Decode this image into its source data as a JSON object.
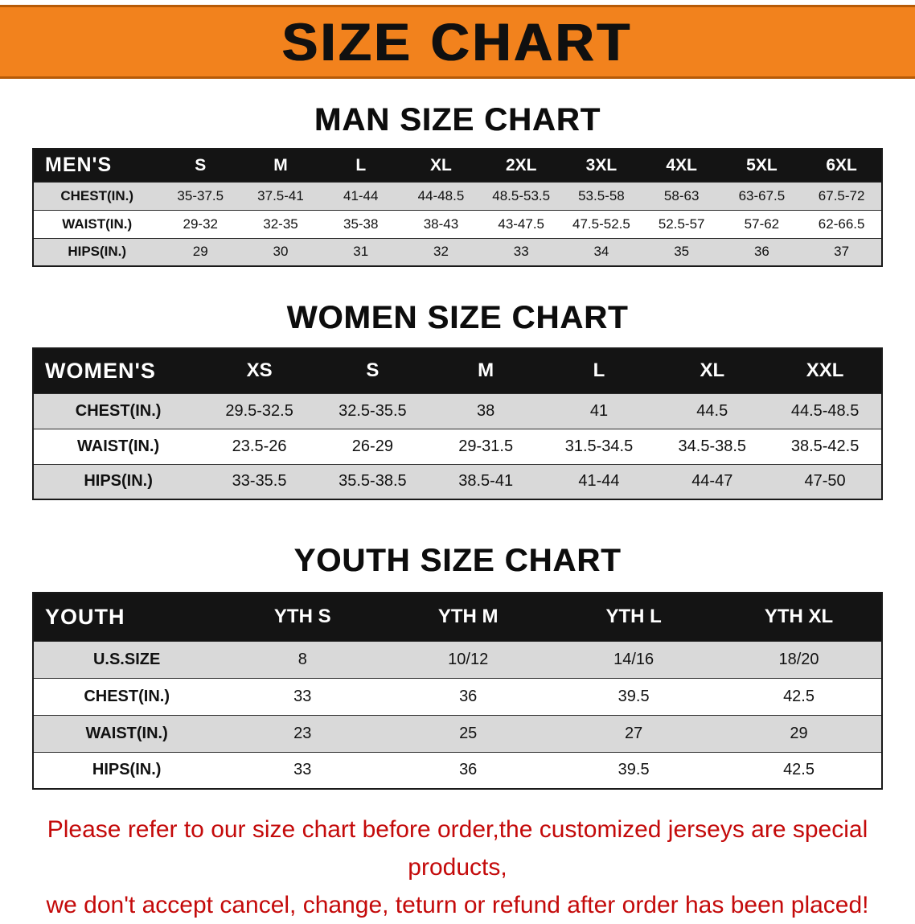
{
  "banner": {
    "title": "SIZE CHART"
  },
  "sections": [
    {
      "id": "men",
      "title": "MAN SIZE CHART",
      "header_label": "MEN'S",
      "columns": [
        "S",
        "M",
        "L",
        "XL",
        "2XL",
        "3XL",
        "4XL",
        "5XL",
        "6XL"
      ],
      "rows": [
        {
          "label": "CHEST(IN.)",
          "values": [
            "35-37.5",
            "37.5-41",
            "41-44",
            "44-48.5",
            "48.5-53.5",
            "53.5-58",
            "58-63",
            "63-67.5",
            "67.5-72"
          ]
        },
        {
          "label": "WAIST(IN.)",
          "values": [
            "29-32",
            "32-35",
            "35-38",
            "38-43",
            "43-47.5",
            "47.5-52.5",
            "52.5-57",
            "57-62",
            "62-66.5"
          ]
        },
        {
          "label": "HIPS(IN.)",
          "values": [
            "29",
            "30",
            "31",
            "32",
            "33",
            "34",
            "35",
            "36",
            "37"
          ]
        }
      ]
    },
    {
      "id": "women",
      "title": "WOMEN SIZE CHART",
      "header_label": "WOMEN'S",
      "columns": [
        "XS",
        "S",
        "M",
        "L",
        "XL",
        "XXL"
      ],
      "rows": [
        {
          "label": "CHEST(IN.)",
          "values": [
            "29.5-32.5",
            "32.5-35.5",
            "38",
            "41",
            "44.5",
            "44.5-48.5"
          ]
        },
        {
          "label": "WAIST(IN.)",
          "values": [
            "23.5-26",
            "26-29",
            "29-31.5",
            "31.5-34.5",
            "34.5-38.5",
            "38.5-42.5"
          ]
        },
        {
          "label": "HIPS(IN.)",
          "values": [
            "33-35.5",
            "35.5-38.5",
            "38.5-41",
            "41-44",
            "44-47",
            "47-50"
          ]
        }
      ]
    },
    {
      "id": "youth",
      "title": "YOUTH SIZE CHART",
      "header_label": "YOUTH",
      "columns": [
        "YTH S",
        "YTH M",
        "YTH L",
        "YTH XL"
      ],
      "rows": [
        {
          "label": "U.S.SIZE",
          "values": [
            "8",
            "10/12",
            "14/16",
            "18/20"
          ]
        },
        {
          "label": "CHEST(IN.)",
          "values": [
            "33",
            "36",
            "39.5",
            "42.5"
          ]
        },
        {
          "label": "WAIST(IN.)",
          "values": [
            "23",
            "25",
            "27",
            "29"
          ]
        },
        {
          "label": "HIPS(IN.)",
          "values": [
            "33",
            "36",
            "39.5",
            "42.5"
          ]
        }
      ]
    }
  ],
  "footer": {
    "line1": "Please refer to our size chart before order,the customized jerseys are special products,",
    "line2": "we don't accept cancel, change, teturn or refund after order has been placed!"
  },
  "colors": {
    "banner_bg": "#F2821D",
    "table_header_bg": "#141414",
    "row_alt_bg": "#D9D9D9",
    "footer_text": "#C40A0A"
  }
}
